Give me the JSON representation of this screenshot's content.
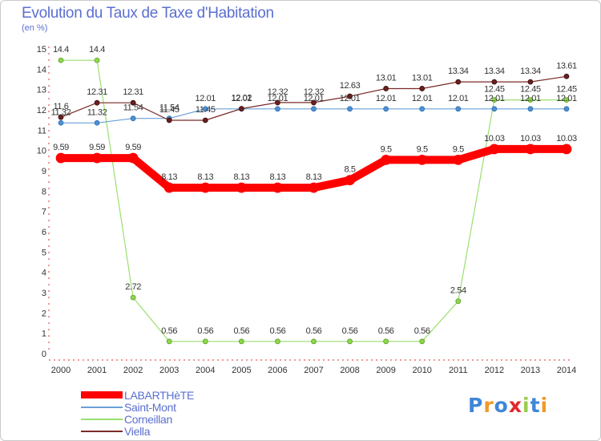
{
  "title": "Evolution du Taux de Taxe d'Habitation",
  "unit": "(en %)",
  "logo_text": "Proxiti",
  "chart_data": {
    "type": "line",
    "title": "Evolution du Taux de Taxe d'Habitation",
    "ylabel": "(en %)",
    "xlabel": "",
    "ylim": [
      0,
      15
    ],
    "y_ticks": [
      0,
      1,
      2,
      3,
      4,
      5,
      6,
      7,
      8,
      9,
      10,
      11,
      12,
      13,
      14,
      15
    ],
    "x": [
      "2000",
      "2001",
      "2002",
      "2003",
      "2004",
      "2005",
      "2006",
      "2007",
      "2008",
      "2009",
      "2010",
      "2011",
      "2012",
      "2013",
      "2014"
    ],
    "grid": false,
    "legend_position": "bottom-left",
    "series": [
      {
        "name": "LABARTHèTE",
        "color": "#ff0000",
        "values": [
          9.59,
          9.59,
          9.59,
          8.13,
          8.13,
          8.13,
          8.13,
          8.13,
          8.5,
          9.5,
          9.5,
          9.5,
          10.03,
          10.03,
          10.03
        ],
        "labels": [
          "9.59",
          "9.59",
          "9.59",
          "8.13",
          "8.13",
          "8.13",
          "8.13",
          "8.13",
          "8.5",
          "9.5",
          "9.5",
          "9.5",
          "10.03",
          "10.03",
          "10.03"
        ]
      },
      {
        "name": "Saint-Mont",
        "color": "#4f8fcf",
        "values": [
          11.32,
          11.32,
          11.54,
          11.54,
          12.01,
          12.01,
          12.01,
          12.01,
          12.01,
          12.01,
          12.01,
          12.01,
          12.01,
          12.01,
          12.01
        ],
        "labels": [
          "11.32",
          "11.32",
          "11.54",
          "11.54",
          "12.01",
          "12.01",
          "12.01",
          "12.01",
          "12.01",
          "12.01",
          "12.01",
          "12.01",
          "12.01",
          "12.01",
          "12.01"
        ]
      },
      {
        "name": "Corneillan",
        "color": "#9adf6f",
        "values": [
          14.4,
          14.4,
          2.72,
          0.56,
          0.56,
          0.56,
          0.56,
          0.56,
          0.56,
          0.56,
          0.56,
          2.54,
          12.45,
          12.45,
          12.45
        ],
        "labels": [
          "14.4",
          "14.4",
          "2.72",
          "0.56",
          "0.56",
          "0.56",
          "0.56",
          "0.56",
          "0.56",
          "0.56",
          "0.56",
          "2.54",
          "12.45",
          "12.45",
          "12.45"
        ]
      },
      {
        "name": "Viella",
        "color": "#7a2a2a",
        "values": [
          11.6,
          12.31,
          12.31,
          11.45,
          11.45,
          12.02,
          12.32,
          12.32,
          12.63,
          13.01,
          13.01,
          13.34,
          13.34,
          13.34,
          13.61
        ],
        "labels": [
          "11.6",
          "12.31",
          "12.31",
          "11.45",
          "11.45",
          "12.02",
          "12.32",
          "12.32",
          "12.63",
          "13.01",
          "13.01",
          "13.34",
          "13.34",
          "13.34",
          "13.61"
        ]
      }
    ]
  }
}
